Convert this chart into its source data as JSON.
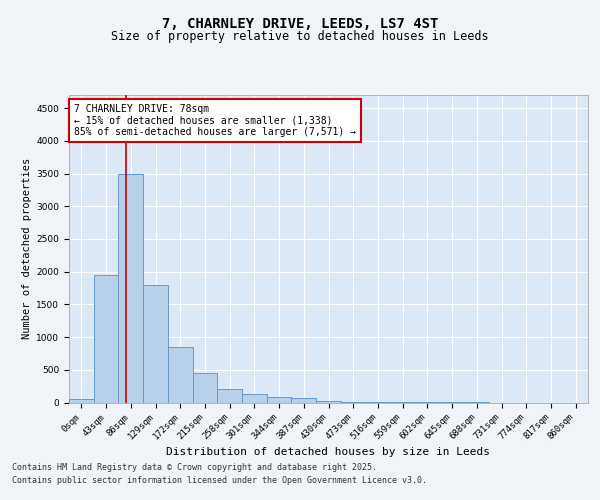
{
  "title_line1": "7, CHARNLEY DRIVE, LEEDS, LS7 4ST",
  "title_line2": "Size of property relative to detached houses in Leeds",
  "xlabel": "Distribution of detached houses by size in Leeds",
  "ylabel": "Number of detached properties",
  "bar_labels": [
    "0sqm",
    "43sqm",
    "86sqm",
    "129sqm",
    "172sqm",
    "215sqm",
    "258sqm",
    "301sqm",
    "344sqm",
    "387sqm",
    "430sqm",
    "473sqm",
    "516sqm",
    "559sqm",
    "602sqm",
    "645sqm",
    "688sqm",
    "731sqm",
    "774sqm",
    "817sqm",
    "860sqm"
  ],
  "bar_heights": [
    50,
    1950,
    3500,
    1800,
    850,
    450,
    200,
    125,
    90,
    65,
    20,
    10,
    5,
    3,
    2,
    1,
    1,
    0,
    0,
    0,
    0
  ],
  "bar_color": "#b8d0e8",
  "bar_edgecolor": "#6699cc",
  "bar_linewidth": 0.7,
  "vline_color": "#cc0000",
  "vline_x_data": 1.82,
  "annotation_text": "7 CHARNLEY DRIVE: 78sqm\n← 15% of detached houses are smaller (1,338)\n85% of semi-detached houses are larger (7,571) →",
  "annotation_box_facecolor": "#ffffff",
  "annotation_box_edgecolor": "#cc0000",
  "ylim": [
    0,
    4700
  ],
  "yticks": [
    0,
    500,
    1000,
    1500,
    2000,
    2500,
    3000,
    3500,
    4000,
    4500
  ],
  "footnote1": "Contains HM Land Registry data © Crown copyright and database right 2025.",
  "footnote2": "Contains public sector information licensed under the Open Government Licence v3.0.",
  "plot_bg_color": "#dce8f5",
  "fig_bg_color": "#f0f4f8",
  "grid_color": "#ffffff",
  "title1_fontsize": 10,
  "title2_fontsize": 8.5,
  "ylabel_fontsize": 7.5,
  "xlabel_fontsize": 8,
  "tick_fontsize": 6.5,
  "footnote_fontsize": 6,
  "annot_fontsize": 7
}
